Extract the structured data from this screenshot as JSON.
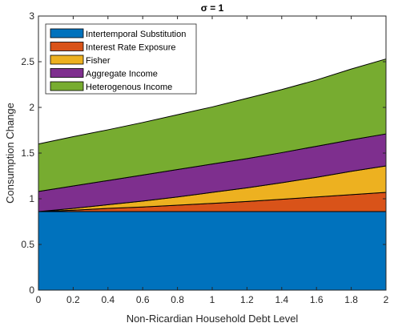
{
  "chart_data": {
    "type": "area",
    "stacked": true,
    "title": "σ = 1",
    "xlabel": "Non-Ricardian Household Debt Level",
    "ylabel": "Consumption Change",
    "xlim": [
      0,
      2
    ],
    "ylim": [
      0,
      3
    ],
    "x_ticks": [
      "0",
      "0.2",
      "0.4",
      "0.6",
      "0.8",
      "1",
      "1.2",
      "1.4",
      "1.6",
      "1.8",
      "2"
    ],
    "y_ticks": [
      "0",
      "0.5",
      "1",
      "1.5",
      "2",
      "2.5",
      "3"
    ],
    "legend_position": "top-left",
    "grid": false,
    "x": [
      0,
      0.2,
      0.4,
      0.6,
      0.8,
      1.0,
      1.2,
      1.4,
      1.6,
      1.8,
      2.0
    ],
    "series": [
      {
        "name": "Intertemporal Substitution",
        "color": "#0072BD",
        "values": [
          0.86,
          0.86,
          0.86,
          0.86,
          0.86,
          0.86,
          0.86,
          0.86,
          0.86,
          0.86,
          0.86
        ]
      },
      {
        "name": "Interest Rate Exposure",
        "color": "#D95319",
        "values": [
          0.0,
          0.015,
          0.035,
          0.05,
          0.07,
          0.09,
          0.11,
          0.135,
          0.16,
          0.185,
          0.21
        ]
      },
      {
        "name": "Fisher",
        "color": "#EDB120",
        "values": [
          0.0,
          0.02,
          0.04,
          0.065,
          0.09,
          0.12,
          0.15,
          0.18,
          0.215,
          0.255,
          0.29
        ]
      },
      {
        "name": "Aggregate Income",
        "color": "#7E2F8E",
        "values": [
          0.22,
          0.245,
          0.265,
          0.285,
          0.3,
          0.31,
          0.32,
          0.33,
          0.34,
          0.345,
          0.35
        ]
      },
      {
        "name": "Heterogenous Income",
        "color": "#77AC30",
        "values": [
          0.52,
          0.54,
          0.555,
          0.575,
          0.6,
          0.625,
          0.66,
          0.69,
          0.725,
          0.775,
          0.82
        ]
      }
    ]
  }
}
